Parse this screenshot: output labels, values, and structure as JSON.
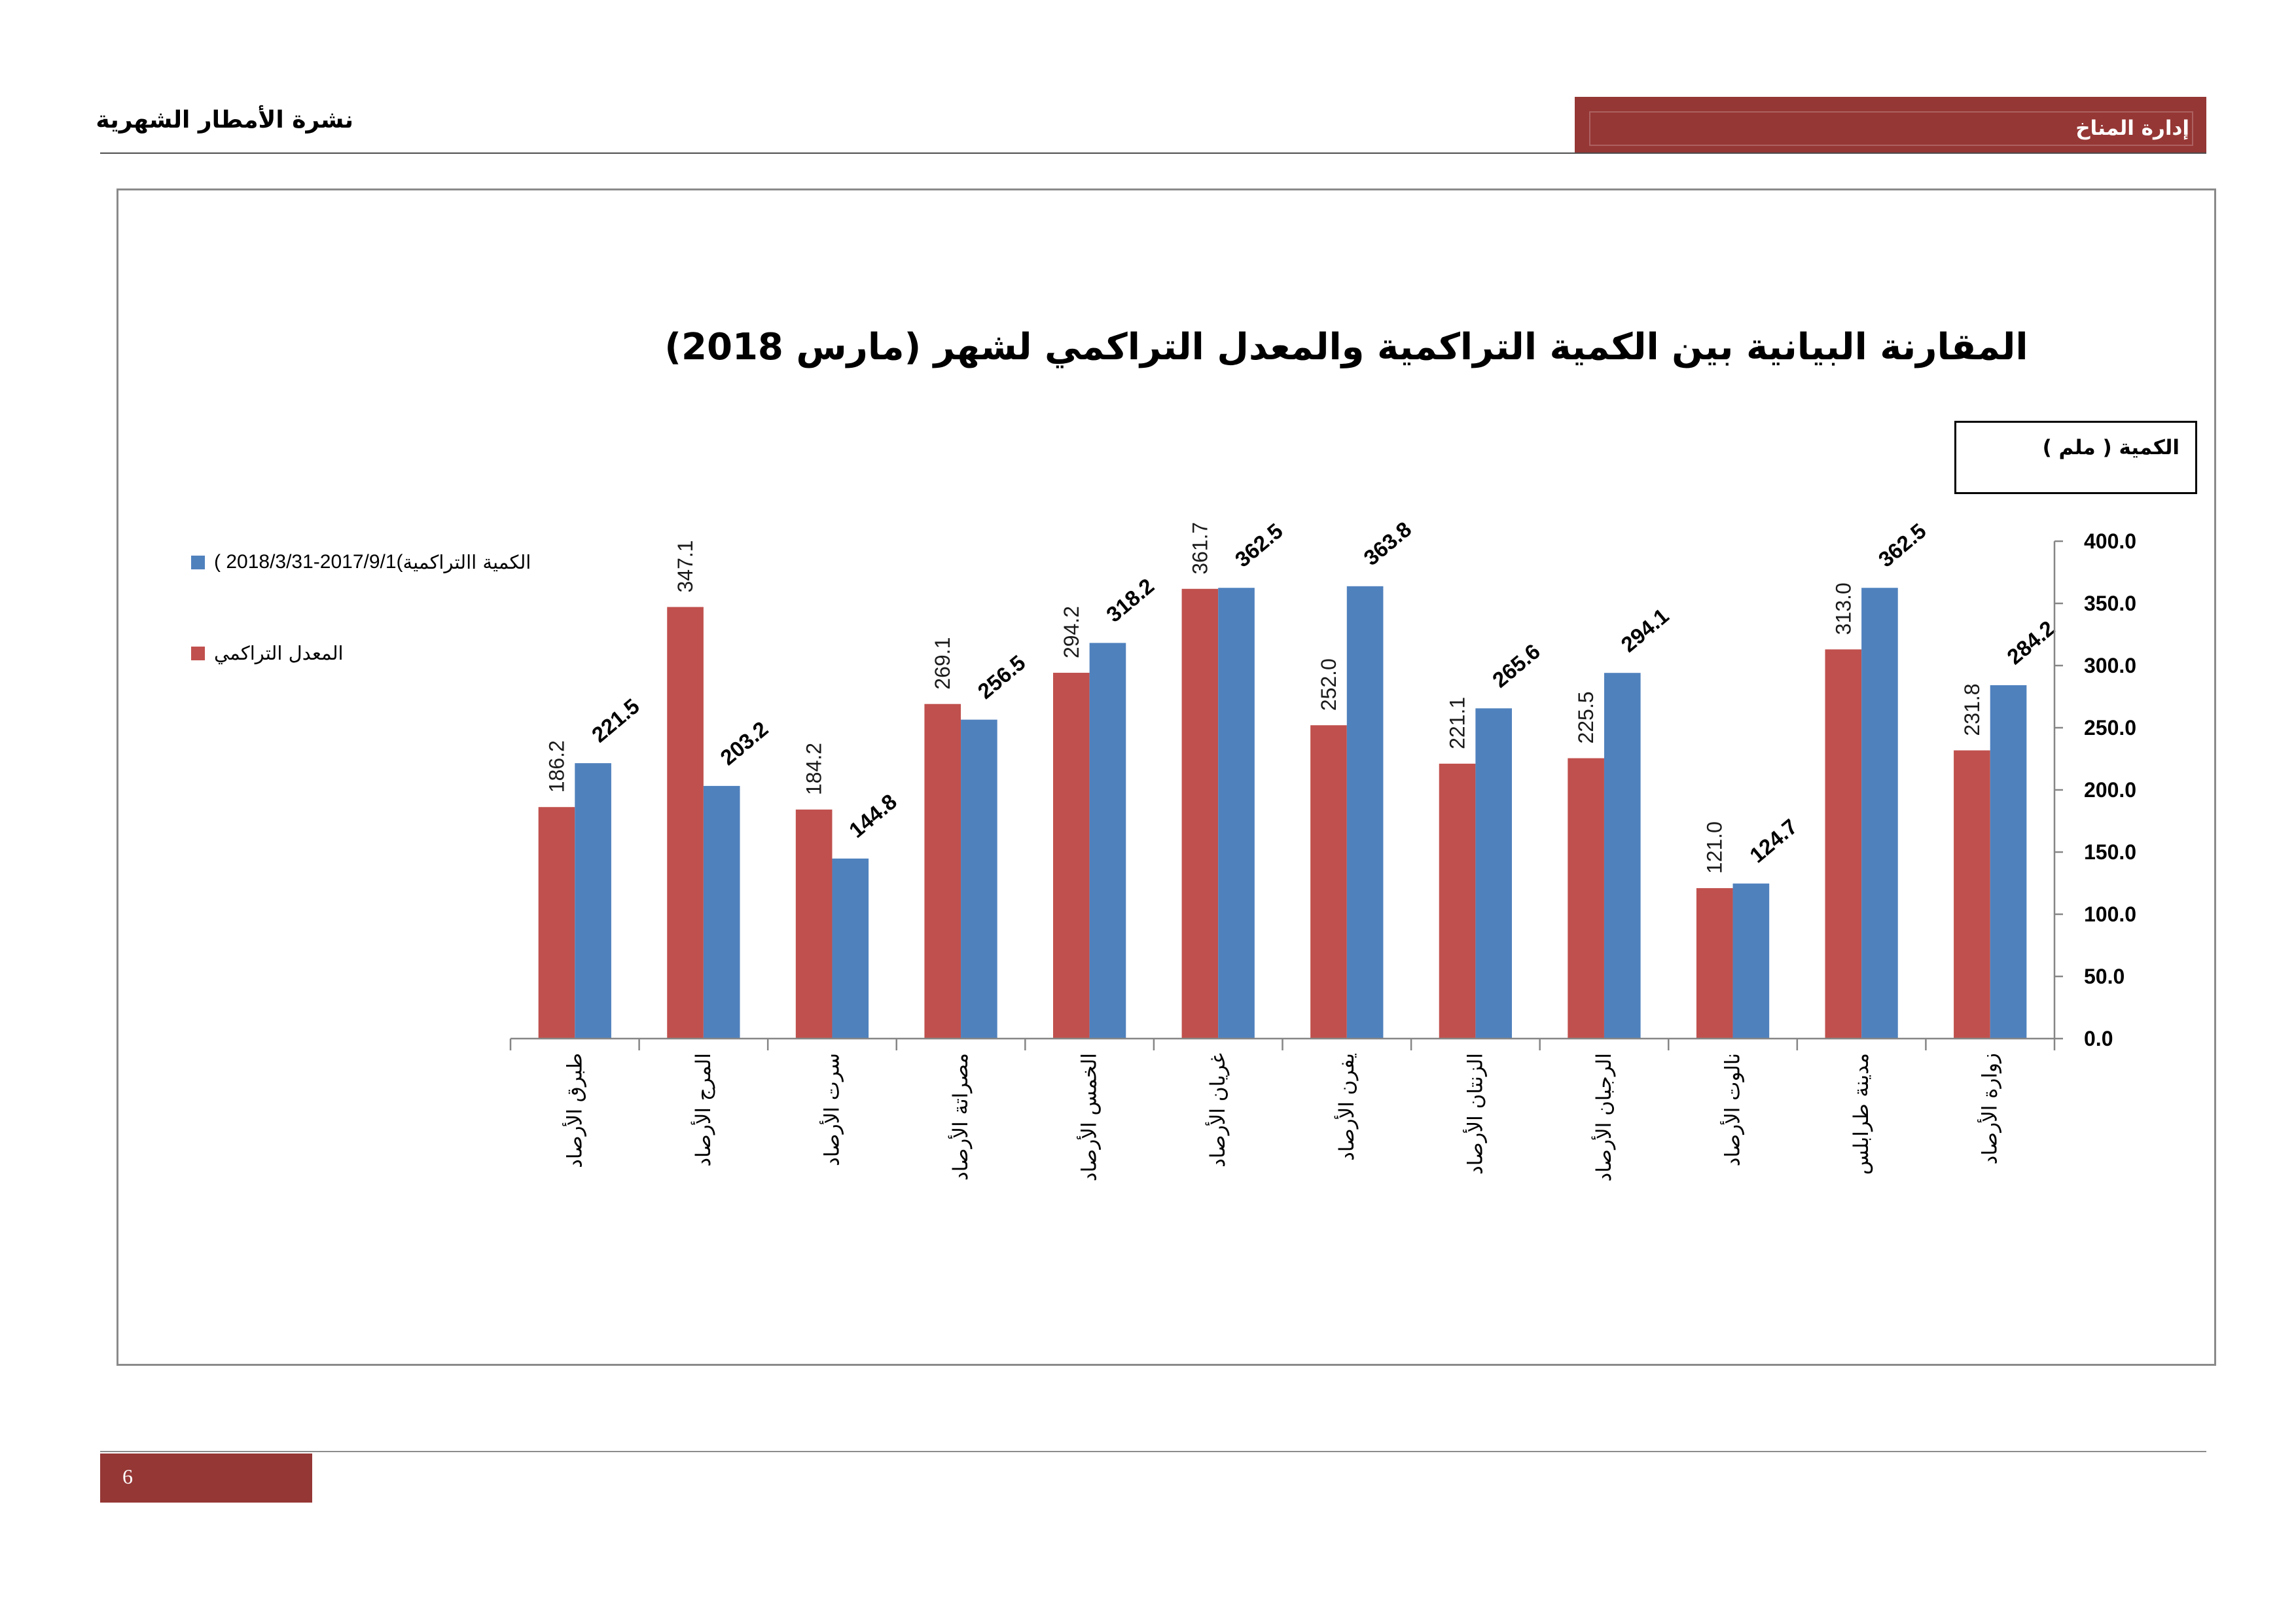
{
  "header": {
    "bulletin_title": "نشرة الأمطار الشهرية",
    "department": "إدارة المناخ"
  },
  "footer": {
    "page_number": "6"
  },
  "colors": {
    "banner": "#953735"
  },
  "chart_data": {
    "type": "bar",
    "title": "المقارنة البيانية بين الكمية التراكمية والمعدل التراكمي لشهر (مارس 2018)",
    "ylabel": "الكمية ( ملم )",
    "ylim": [
      0,
      400
    ],
    "yticks": [
      0,
      50,
      100,
      150,
      200,
      250,
      300,
      350,
      400
    ],
    "categories": [
      "طبرق الأرصاد",
      "المرج الأرصاد",
      "سرت الأرصاد",
      "مصراتة الأرصاد",
      "الخمس الأرصاد",
      "غريان الأرصاد",
      "يفرن الأرصاد",
      "الزنتان الأرصاد",
      "الرجبان الأرصاد",
      "نالوت الأرصاد",
      "مدينة طرابلس",
      "زوارة الأرصاد"
    ],
    "series": [
      {
        "name": "المعدل التراكمي",
        "color": "#C0504D",
        "values": [
          186.2,
          347.1,
          184.2,
          269.1,
          294.2,
          361.7,
          252.0,
          221.1,
          225.5,
          121.0,
          313.0,
          231.8
        ]
      },
      {
        "name": "الكمية االتراكمية",
        "period": "( 2018/3/31-2017/9/1(",
        "color": "#4F81BD",
        "values": [
          221.5,
          203.2,
          144.8,
          256.5,
          318.2,
          362.5,
          363.8,
          265.6,
          294.1,
          124.7,
          362.5,
          284.2
        ]
      }
    ],
    "legend_position": "left",
    "grid": false
  }
}
